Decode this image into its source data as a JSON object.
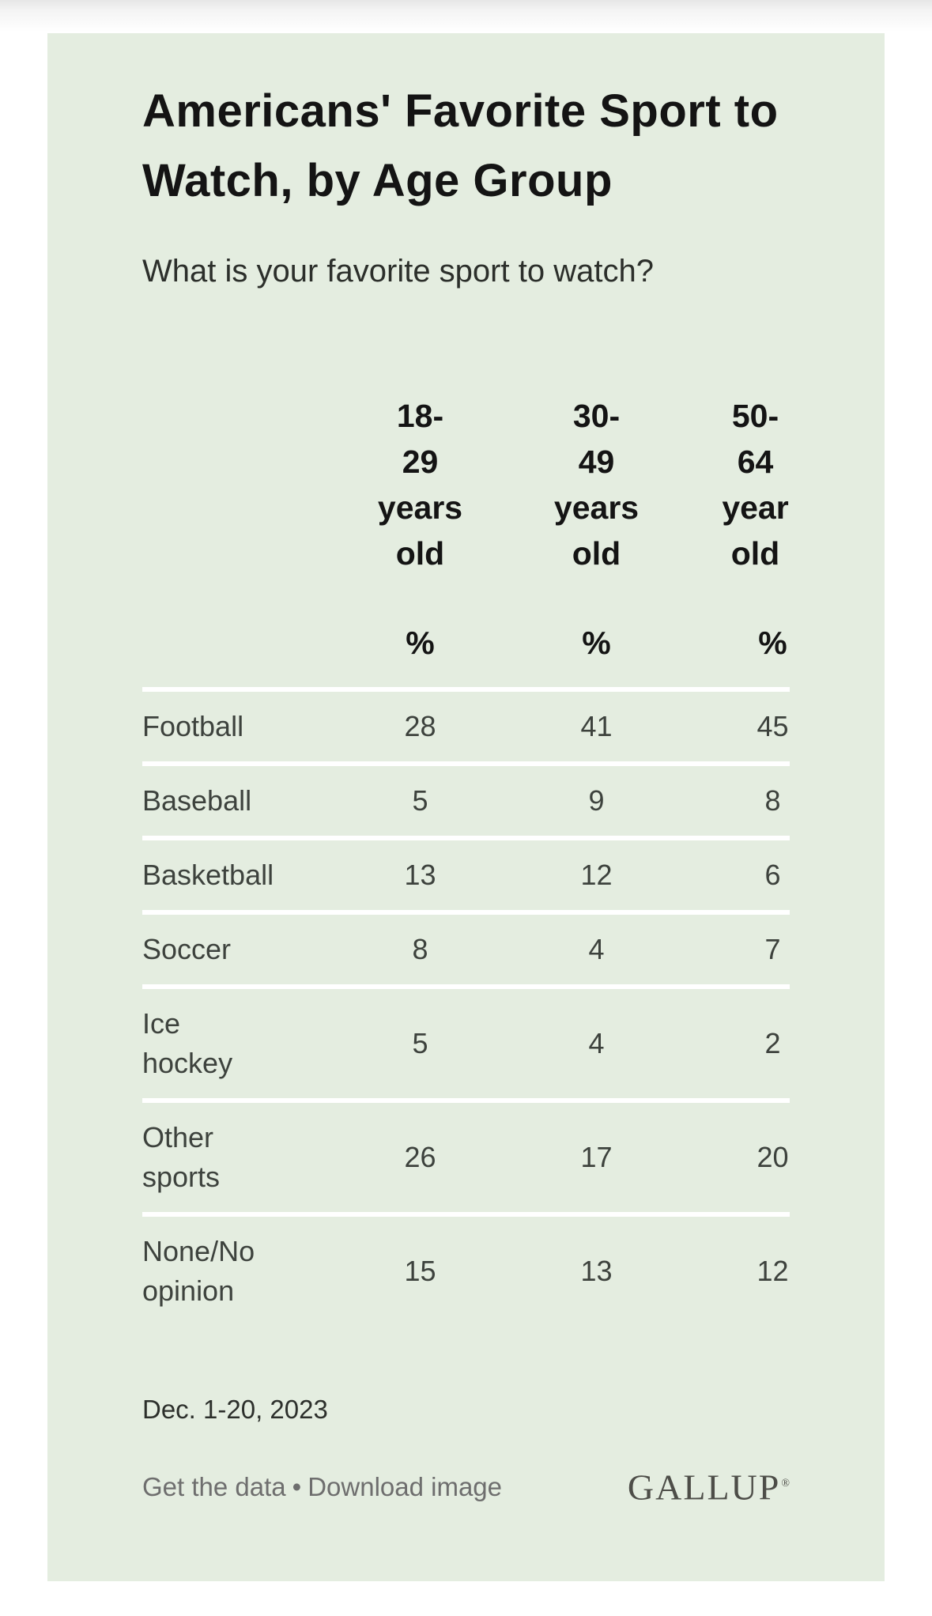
{
  "page": {
    "title_display": "Americans' Favorite Sport to\nWatch, by Age Group",
    "subtitle": "What is your favorite sport to watch?",
    "date": "Dec. 1-20, 2023",
    "links": {
      "get_data": "Get the data",
      "bullet": "•",
      "download_image": "Download image"
    },
    "brand": {
      "logo": "GALLUP",
      "registered": "®"
    },
    "colors": {
      "card_bg": "#e4ede0",
      "heading_text": "#141414",
      "body_text": "#3d423d",
      "link_text": "#6e6e6e",
      "logo_text": "#4d4d48",
      "separator": "#ffffff"
    }
  },
  "chart_data": {
    "type": "table",
    "title": "Americans' Favorite Sport to Watch, by Age Group",
    "question": "What is your favorite sport to watch?",
    "unit": "%",
    "columns": [
      "18-29 years old",
      "30-49 years old",
      "50-64 year old"
    ],
    "columns_display": [
      "18-\n29\nyears\nold",
      "30-\n49\nyears\nold",
      "50-\n64\nyear\nold"
    ],
    "unit_row": [
      "%",
      "%",
      "%"
    ],
    "rows": [
      {
        "label": "Football",
        "display": "Football",
        "values": [
          28,
          41,
          45
        ]
      },
      {
        "label": "Baseball",
        "display": "Baseball",
        "values": [
          5,
          9,
          8
        ]
      },
      {
        "label": "Basketball",
        "display": "Basketball",
        "values": [
          13,
          12,
          6
        ]
      },
      {
        "label": "Soccer",
        "display": "Soccer",
        "values": [
          8,
          4,
          7
        ]
      },
      {
        "label": "Ice hockey",
        "display": "Ice\nhockey",
        "values": [
          5,
          4,
          2
        ]
      },
      {
        "label": "Other sports",
        "display": "Other\nsports",
        "values": [
          26,
          17,
          20
        ]
      },
      {
        "label": "None/No opinion",
        "display": "None/No\nopinion",
        "values": [
          15,
          13,
          12
        ]
      }
    ],
    "footnote": "Dec. 1-20, 2023",
    "source": "GALLUP"
  }
}
